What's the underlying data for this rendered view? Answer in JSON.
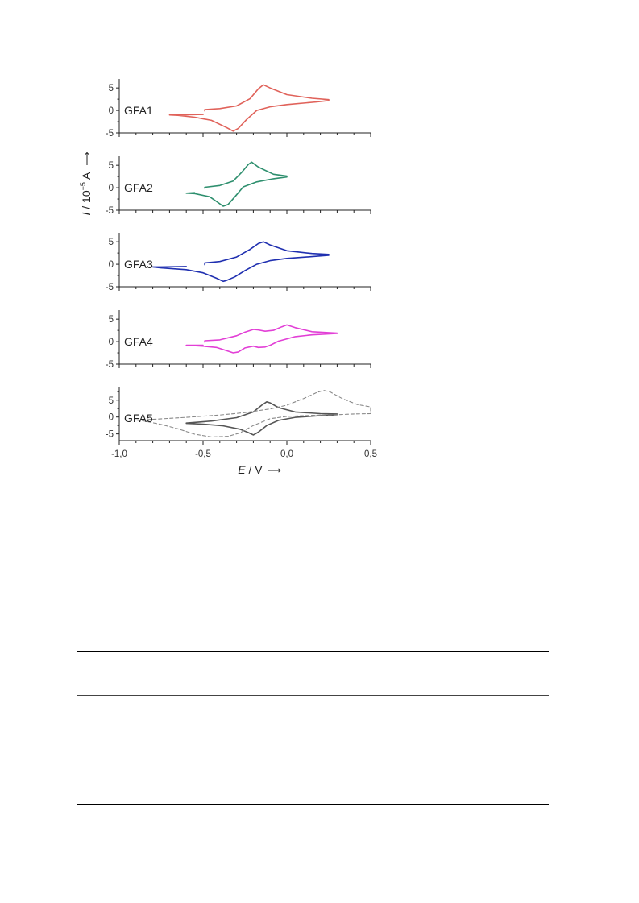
{
  "figure": {
    "ylabel_italic": "I",
    "ylabel_rest": " / 10",
    "ylabel_exp": "−5",
    "ylabel_unit": " A",
    "ylabel_arrow": "⟶",
    "xlabel_italic": "E",
    "xlabel_rest": " / V",
    "xlabel_arrow": "⟶"
  },
  "chart_data": [
    {
      "type": "line",
      "panel": "GFA1",
      "label": "GFA1",
      "color": "#e0625a",
      "xlim": [
        -1.0,
        0.5
      ],
      "ylim": [
        -5,
        7
      ],
      "yticks": [
        "5",
        "0",
        "-5"
      ],
      "x_tick_labels_shown": false,
      "series": [
        {
          "style": "solid",
          "x": [
            -0.49,
            -0.49,
            -0.4,
            -0.3,
            -0.22,
            -0.17,
            -0.14,
            -0.1,
            0.0,
            0.15,
            0.25,
            0.25,
            0.18,
            0.0,
            -0.1,
            -0.18,
            -0.24,
            -0.29,
            -0.32,
            -0.36,
            -0.45,
            -0.55,
            -0.65,
            -0.7,
            -0.65,
            -0.5
          ],
          "y": [
            -0.1,
            0.2,
            0.4,
            1.0,
            2.6,
            4.8,
            5.7,
            5.0,
            3.5,
            2.7,
            2.4,
            2.2,
            1.9,
            1.3,
            0.8,
            0.0,
            -2.0,
            -4.0,
            -4.6,
            -3.8,
            -2.2,
            -1.5,
            -1.1,
            -1.0,
            -1.0,
            -0.9
          ]
        }
      ]
    },
    {
      "type": "line",
      "panel": "GFA2",
      "label": "GFA2",
      "color": "#2e8f6e",
      "xlim": [
        -1.0,
        0.5
      ],
      "ylim": [
        -5,
        7
      ],
      "yticks": [
        "5",
        "0",
        "-5"
      ],
      "x_tick_labels_shown": false,
      "series": [
        {
          "style": "solid",
          "x": [
            -0.49,
            -0.49,
            -0.4,
            -0.32,
            -0.27,
            -0.23,
            -0.21,
            -0.17,
            -0.08,
            0.0,
            0.0,
            -0.08,
            -0.18,
            -0.26,
            -0.31,
            -0.35,
            -0.38,
            -0.41,
            -0.46,
            -0.55,
            -0.6,
            -0.55
          ],
          "y": [
            -0.1,
            0.1,
            0.5,
            1.5,
            3.4,
            5.2,
            5.7,
            4.6,
            3.0,
            2.6,
            2.4,
            2.0,
            1.3,
            0.2,
            -2.0,
            -3.7,
            -4.1,
            -3.3,
            -2.0,
            -1.3,
            -1.2,
            -1.1
          ]
        }
      ]
    },
    {
      "type": "line",
      "panel": "GFA3",
      "label": "GFA3",
      "color": "#1f2fb0",
      "xlim": [
        -1.0,
        0.5
      ],
      "ylim": [
        -5,
        7
      ],
      "yticks": [
        "5",
        "0",
        "-5"
      ],
      "x_tick_labels_shown": false,
      "series": [
        {
          "style": "solid",
          "x": [
            -0.49,
            -0.49,
            -0.4,
            -0.3,
            -0.22,
            -0.17,
            -0.14,
            -0.1,
            0.0,
            0.15,
            0.25,
            0.25,
            0.15,
            0.0,
            -0.1,
            -0.18,
            -0.25,
            -0.31,
            -0.36,
            -0.38,
            -0.42,
            -0.5,
            -0.6,
            -0.75,
            -0.8,
            -0.75,
            -0.6
          ],
          "y": [
            -0.1,
            0.3,
            0.6,
            1.6,
            3.3,
            4.6,
            5.0,
            4.3,
            3.0,
            2.4,
            2.2,
            2.0,
            1.7,
            1.3,
            0.8,
            0.0,
            -1.4,
            -2.8,
            -3.6,
            -3.8,
            -3.1,
            -1.9,
            -1.2,
            -0.8,
            -0.6,
            -0.6,
            -0.5
          ]
        }
      ]
    },
    {
      "type": "line",
      "panel": "GFA4",
      "label": "GFA4",
      "color": "#e23fd6",
      "xlim": [
        -1.0,
        0.5
      ],
      "ylim": [
        -5,
        7
      ],
      "yticks": [
        "5",
        "0",
        "-5"
      ],
      "x_tick_labels_shown": false,
      "series": [
        {
          "style": "solid",
          "x": [
            -0.49,
            -0.49,
            -0.4,
            -0.3,
            -0.25,
            -0.2,
            -0.17,
            -0.13,
            -0.08,
            -0.03,
            0.0,
            0.05,
            0.15,
            0.3,
            0.3,
            0.15,
            0.05,
            -0.05,
            -0.1,
            -0.13,
            -0.17,
            -0.2,
            -0.25,
            -0.29,
            -0.32,
            -0.36,
            -0.42,
            -0.5,
            -0.6,
            -0.5
          ],
          "y": [
            -0.1,
            0.2,
            0.4,
            1.3,
            2.1,
            2.7,
            2.6,
            2.3,
            2.5,
            3.3,
            3.7,
            3.1,
            2.2,
            1.9,
            1.8,
            1.5,
            1.1,
            0.1,
            -0.8,
            -1.2,
            -1.3,
            -1.0,
            -1.4,
            -2.3,
            -2.5,
            -2.0,
            -1.3,
            -1.0,
            -0.8,
            -0.8
          ]
        }
      ]
    },
    {
      "type": "line",
      "panel": "GFA5",
      "label": "GFA5",
      "color": "#555555",
      "xlim": [
        -1.0,
        0.5
      ],
      "ylim": [
        -7,
        9
      ],
      "yticks": [
        "5",
        "0",
        "-5"
      ],
      "xticks": [
        "-1,0",
        "-0,5",
        "0,0",
        "0,5"
      ],
      "x_tick_values": [
        -1.0,
        -0.5,
        0.0,
        0.5
      ],
      "series": [
        {
          "style": "solid",
          "x": [
            -0.6,
            -0.45,
            -0.3,
            -0.2,
            -0.15,
            -0.12,
            -0.1,
            -0.05,
            0.05,
            0.2,
            0.3,
            0.3,
            0.2,
            0.05,
            -0.05,
            -0.12,
            -0.17,
            -0.2,
            -0.23,
            -0.28,
            -0.38,
            -0.5,
            -0.6
          ],
          "y": [
            -1.8,
            -1.2,
            -0.2,
            1.5,
            3.5,
            4.5,
            4.2,
            2.8,
            1.5,
            1.0,
            0.9,
            0.7,
            0.4,
            -0.1,
            -1.0,
            -2.5,
            -4.5,
            -5.3,
            -4.6,
            -3.6,
            -2.6,
            -2.1,
            -1.9
          ]
        },
        {
          "style": "dashed",
          "x": [
            -0.9,
            -0.8,
            -0.6,
            -0.4,
            -0.25,
            -0.1,
            0.0,
            0.1,
            0.18,
            0.22,
            0.26,
            0.33,
            0.42,
            0.5,
            0.5,
            0.4,
            0.3,
            0.15,
            0.0,
            -0.1,
            -0.2,
            -0.28,
            -0.35,
            -0.45,
            -0.55,
            -0.65,
            -0.75,
            -0.85,
            -0.9
          ],
          "y": [
            -0.9,
            -0.7,
            -0.1,
            0.6,
            1.3,
            2.4,
            3.5,
            5.5,
            7.3,
            7.9,
            7.4,
            5.5,
            3.7,
            3.0,
            1.0,
            0.9,
            0.7,
            0.5,
            0.2,
            -0.5,
            -2.5,
            -4.7,
            -5.7,
            -5.9,
            -5.1,
            -3.5,
            -2.2,
            -1.2,
            -0.9
          ]
        }
      ]
    }
  ]
}
